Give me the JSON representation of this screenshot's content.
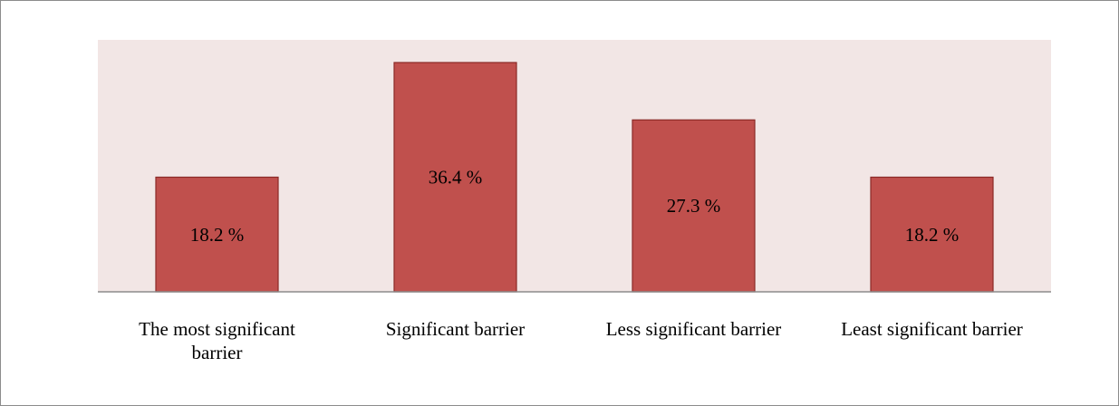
{
  "chart_data": {
    "type": "bar",
    "title": "",
    "xlabel": "",
    "ylabel": "",
    "categories": [
      "The most significant barrier",
      "Significant barrier",
      "Less significant barrier",
      "Least significant barrier"
    ],
    "category_label_lines": [
      [
        "The most significant",
        "barrier"
      ],
      [
        "Significant barrier"
      ],
      [
        "Less significant barrier"
      ],
      [
        "Least significant barrier"
      ]
    ],
    "values": [
      18.2,
      36.4,
      27.3,
      18.2
    ],
    "data_labels": [
      "18.2 %",
      "36.4 %",
      "27.3 %",
      "18.2 %"
    ],
    "ylim": [
      0,
      40
    ],
    "grid": false,
    "legend": "none",
    "colors": {
      "bar_fill": "#c0504d",
      "bar_border": "#8b2a27",
      "plot_background": "#f2e6e5",
      "axis_line": "#8c8c8c"
    }
  }
}
